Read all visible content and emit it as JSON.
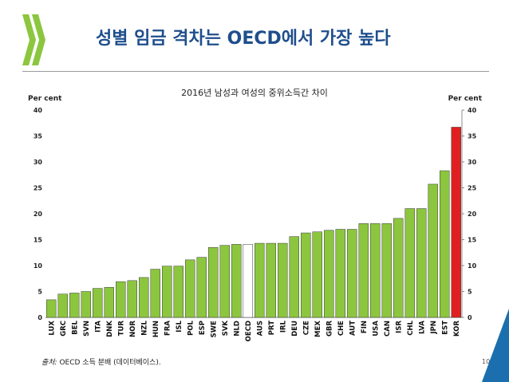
{
  "slide": {
    "title": "성별 임금 격차는 OECD에서 가장 높다",
    "source_label": "출처:",
    "source_text": " OECD 소득 분배 (데이터베이스).",
    "page_number": "10"
  },
  "colors": {
    "title": "#1f4e8c",
    "logo": "#8cc63f",
    "bar": "#8cc63f",
    "bar_highlight": "#e02020",
    "bar_oecd": "#ffffff",
    "corner": "#1b6fae"
  },
  "chart_data": {
    "type": "bar",
    "title": "2016년 남성과 여성의 중위소득간 차이",
    "ylabel_left": "Per cent",
    "ylabel_right": "Per cent",
    "ylim": [
      0,
      40
    ],
    "yticks": [
      "0",
      "5",
      "10",
      "15",
      "20",
      "25",
      "30",
      "35",
      "40"
    ],
    "grid": false,
    "categories": [
      "LUX",
      "GRC",
      "BEL",
      "SVN",
      "ITA",
      "DNK",
      "TUR",
      "NOR",
      "NZL",
      "HUN",
      "FRA",
      "ISL",
      "POL",
      "ESP",
      "SWE",
      "SVK",
      "NLD",
      "OECD",
      "AUS",
      "PRT",
      "IRL",
      "DEU",
      "CZE",
      "MEX",
      "GBR",
      "CHE",
      "AUT",
      "FIN",
      "USA",
      "CAN",
      "ISR",
      "CHL",
      "LVA",
      "JPN",
      "EST",
      "KOR"
    ],
    "values": [
      3.4,
      4.5,
      4.7,
      5.0,
      5.6,
      5.8,
      6.9,
      7.1,
      7.7,
      9.3,
      9.9,
      9.9,
      11.1,
      11.6,
      13.5,
      13.9,
      14.1,
      14.1,
      14.3,
      14.3,
      14.3,
      15.6,
      16.3,
      16.5,
      16.8,
      17.0,
      17.0,
      18.1,
      18.1,
      18.1,
      19.1,
      21.0,
      21.0,
      25.7,
      28.3,
      36.7
    ],
    "highlight": "KOR",
    "outline": "OECD"
  }
}
